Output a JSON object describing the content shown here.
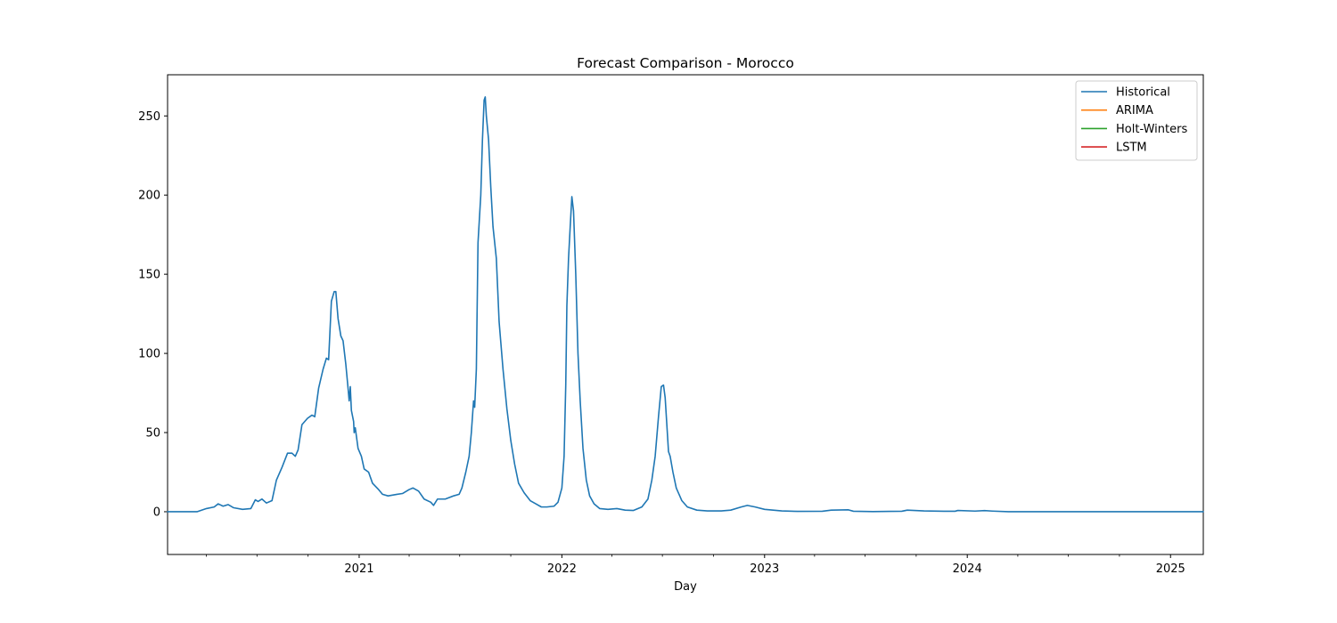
{
  "chart_data": {
    "type": "line",
    "title": "Forecast Comparison - Morocco",
    "xlabel": "Day",
    "ylabel": "",
    "x_type": "date",
    "xlim": [
      "2020-01-22",
      "2025-03-01"
    ],
    "ylim": [
      -27,
      276
    ],
    "yticks": [
      0,
      50,
      100,
      150,
      200,
      250
    ],
    "xticks": [
      "2021-01-01",
      "2022-01-01",
      "2023-01-01",
      "2024-01-01",
      "2025-01-01"
    ],
    "xtick_labels": [
      "2021",
      "2022",
      "2023",
      "2024",
      "2025"
    ],
    "legend_position": "upper right",
    "grid": false,
    "series": [
      {
        "name": "Historical",
        "color": "#1f77b4",
        "points": [
          [
            "2020-01-22",
            0
          ],
          [
            "2020-03-15",
            0
          ],
          [
            "2020-04-01",
            2
          ],
          [
            "2020-04-15",
            3
          ],
          [
            "2020-04-22",
            5
          ],
          [
            "2020-05-01",
            3.5
          ],
          [
            "2020-05-10",
            4.5
          ],
          [
            "2020-05-20",
            2.5
          ],
          [
            "2020-06-05",
            1.5
          ],
          [
            "2020-06-20",
            2
          ],
          [
            "2020-06-28",
            7.5
          ],
          [
            "2020-07-03",
            6.5
          ],
          [
            "2020-07-10",
            8
          ],
          [
            "2020-07-18",
            5.5
          ],
          [
            "2020-07-28",
            7
          ],
          [
            "2020-08-05",
            20
          ],
          [
            "2020-08-15",
            28
          ],
          [
            "2020-08-25",
            37
          ],
          [
            "2020-09-02",
            37
          ],
          [
            "2020-09-08",
            35
          ],
          [
            "2020-09-13",
            39
          ],
          [
            "2020-09-20",
            55
          ],
          [
            "2020-09-30",
            59
          ],
          [
            "2020-10-08",
            61
          ],
          [
            "2020-10-13",
            60
          ],
          [
            "2020-10-20",
            78
          ],
          [
            "2020-10-28",
            90
          ],
          [
            "2020-11-03",
            97
          ],
          [
            "2020-11-07",
            96
          ],
          [
            "2020-11-12",
            133
          ],
          [
            "2020-11-17",
            139
          ],
          [
            "2020-11-20",
            139
          ],
          [
            "2020-11-24",
            122
          ],
          [
            "2020-11-29",
            111
          ],
          [
            "2020-12-03",
            108
          ],
          [
            "2020-12-08",
            93
          ],
          [
            "2020-12-12",
            78
          ],
          [
            "2020-12-14",
            70
          ],
          [
            "2020-12-16",
            79
          ],
          [
            "2020-12-18",
            64
          ],
          [
            "2020-12-22",
            57
          ],
          [
            "2020-12-23",
            50
          ],
          [
            "2020-12-25",
            53
          ],
          [
            "2020-12-30",
            40
          ],
          [
            "2021-01-05",
            35
          ],
          [
            "2021-01-10",
            27
          ],
          [
            "2021-01-18",
            25
          ],
          [
            "2021-01-25",
            18
          ],
          [
            "2021-02-05",
            14
          ],
          [
            "2021-02-12",
            11
          ],
          [
            "2021-02-22",
            10
          ],
          [
            "2021-03-10",
            11
          ],
          [
            "2021-03-20",
            11.5
          ],
          [
            "2021-04-01",
            14
          ],
          [
            "2021-04-08",
            15
          ],
          [
            "2021-04-18",
            13
          ],
          [
            "2021-04-28",
            8
          ],
          [
            "2021-05-10",
            6
          ],
          [
            "2021-05-15",
            4
          ],
          [
            "2021-05-22",
            8
          ],
          [
            "2021-06-05",
            8
          ],
          [
            "2021-06-20",
            10
          ],
          [
            "2021-06-30",
            11
          ],
          [
            "2021-07-05",
            15
          ],
          [
            "2021-07-12",
            25
          ],
          [
            "2021-07-18",
            35
          ],
          [
            "2021-07-22",
            50
          ],
          [
            "2021-07-26",
            70
          ],
          [
            "2021-07-28",
            66
          ],
          [
            "2021-07-31",
            90
          ],
          [
            "2021-08-03",
            170
          ],
          [
            "2021-08-08",
            200
          ],
          [
            "2021-08-11",
            235
          ],
          [
            "2021-08-14",
            260
          ],
          [
            "2021-08-16",
            262
          ],
          [
            "2021-08-18",
            250
          ],
          [
            "2021-08-22",
            235
          ],
          [
            "2021-08-26",
            205
          ],
          [
            "2021-08-30",
            180
          ],
          [
            "2021-09-05",
            160
          ],
          [
            "2021-09-10",
            120
          ],
          [
            "2021-09-17",
            90
          ],
          [
            "2021-09-24",
            65
          ],
          [
            "2021-10-01",
            45
          ],
          [
            "2021-10-08",
            30
          ],
          [
            "2021-10-15",
            18
          ],
          [
            "2021-10-25",
            12
          ],
          [
            "2021-11-05",
            7
          ],
          [
            "2021-11-15",
            5
          ],
          [
            "2021-11-25",
            3
          ],
          [
            "2021-12-05",
            3
          ],
          [
            "2021-12-18",
            3.5
          ],
          [
            "2021-12-25",
            6
          ],
          [
            "2022-01-01",
            15
          ],
          [
            "2022-01-05",
            35
          ],
          [
            "2022-01-08",
            80
          ],
          [
            "2022-01-10",
            130
          ],
          [
            "2022-01-13",
            160
          ],
          [
            "2022-01-16",
            180
          ],
          [
            "2022-01-19",
            199
          ],
          [
            "2022-01-22",
            190
          ],
          [
            "2022-01-26",
            150
          ],
          [
            "2022-01-30",
            100
          ],
          [
            "2022-02-03",
            70
          ],
          [
            "2022-02-08",
            40
          ],
          [
            "2022-02-14",
            20
          ],
          [
            "2022-02-20",
            10
          ],
          [
            "2022-02-28",
            5
          ],
          [
            "2022-03-10",
            2
          ],
          [
            "2022-03-25",
            1.5
          ],
          [
            "2022-04-10",
            2
          ],
          [
            "2022-04-25",
            1
          ],
          [
            "2022-05-10",
            0.8
          ],
          [
            "2022-05-25",
            3
          ],
          [
            "2022-06-05",
            8
          ],
          [
            "2022-06-12",
            20
          ],
          [
            "2022-06-18",
            35
          ],
          [
            "2022-06-24",
            60
          ],
          [
            "2022-06-29",
            79
          ],
          [
            "2022-07-03",
            80
          ],
          [
            "2022-07-06",
            72
          ],
          [
            "2022-07-09",
            55
          ],
          [
            "2022-07-12",
            38
          ],
          [
            "2022-07-15",
            35
          ],
          [
            "2022-07-20",
            25
          ],
          [
            "2022-07-26",
            15
          ],
          [
            "2022-08-05",
            7
          ],
          [
            "2022-08-15",
            3
          ],
          [
            "2022-09-01",
            1
          ],
          [
            "2022-09-20",
            0.5
          ],
          [
            "2022-10-15",
            0.5
          ],
          [
            "2022-11-01",
            1
          ],
          [
            "2022-11-20",
            3
          ],
          [
            "2022-12-01",
            4
          ],
          [
            "2022-12-15",
            3
          ],
          [
            "2023-01-01",
            1.5
          ],
          [
            "2023-02-01",
            0.5
          ],
          [
            "2023-03-01",
            0.2
          ],
          [
            "2023-04-15",
            0.3
          ],
          [
            "2023-05-01",
            1
          ],
          [
            "2023-06-01",
            1.2
          ],
          [
            "2023-06-10",
            0.3
          ],
          [
            "2023-07-15",
            0.1
          ],
          [
            "2023-08-15",
            0.2
          ],
          [
            "2023-09-05",
            0.3
          ],
          [
            "2023-09-15",
            1
          ],
          [
            "2023-10-15",
            0.5
          ],
          [
            "2023-11-20",
            0.3
          ],
          [
            "2023-12-10",
            0.3
          ],
          [
            "2023-12-15",
            0.8
          ],
          [
            "2024-01-15",
            0.4
          ],
          [
            "2024-02-01",
            0.7
          ],
          [
            "2024-02-15",
            0.4
          ],
          [
            "2024-03-15",
            0
          ],
          [
            "2025-03-01",
            0
          ]
        ]
      },
      {
        "name": "ARIMA",
        "color": "#ff7f0e",
        "points": []
      },
      {
        "name": "Holt-Winters",
        "color": "#2ca02c",
        "points": []
      },
      {
        "name": "LSTM",
        "color": "#d62728",
        "points": []
      }
    ]
  }
}
